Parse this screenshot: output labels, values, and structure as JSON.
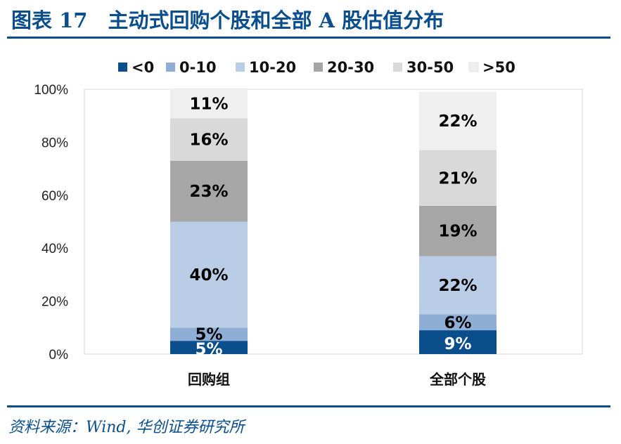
{
  "header": {
    "title": "图表 17　主动式回购个股和全部 A 股估值分布"
  },
  "source": "资料来源：Wind, 华创证券研究所",
  "chart_data": {
    "type": "bar",
    "stacked": true,
    "percent_stacked": true,
    "title": "",
    "xlabel": "",
    "ylabel": "",
    "categories": [
      "回购组",
      "全部个股"
    ],
    "ylim": [
      0,
      100
    ],
    "y_ticks": [
      "0%",
      "20%",
      "40%",
      "60%",
      "80%",
      "100%"
    ],
    "grid": false,
    "legend_position": "top",
    "series": [
      {
        "name": "<0",
        "values": [
          5,
          9
        ],
        "labels": [
          "5%",
          "9%"
        ],
        "color": "#0a4e8c",
        "label_color": "#ffffff"
      },
      {
        "name": "0-10",
        "values": [
          5,
          6
        ],
        "labels": [
          "5%",
          "6%"
        ],
        "color": "#8eaed5",
        "label_color": "#000000"
      },
      {
        "name": "10-20",
        "values": [
          40,
          22
        ],
        "labels": [
          "40%",
          "22%"
        ],
        "color": "#b9cde6",
        "label_color": "#000000"
      },
      {
        "name": "20-30",
        "values": [
          23,
          19
        ],
        "labels": [
          "23%",
          "19%"
        ],
        "color": "#a6a6a6",
        "label_color": "#000000"
      },
      {
        "name": "30-50",
        "values": [
          16,
          21
        ],
        "labels": [
          "16%",
          "21%"
        ],
        "color": "#d9d9d9",
        "label_color": "#000000"
      },
      {
        "name": ">50",
        "values": [
          11,
          22
        ],
        "labels": [
          "11%",
          "22%"
        ],
        "color": "#efefef",
        "label_color": "#000000"
      }
    ]
  }
}
